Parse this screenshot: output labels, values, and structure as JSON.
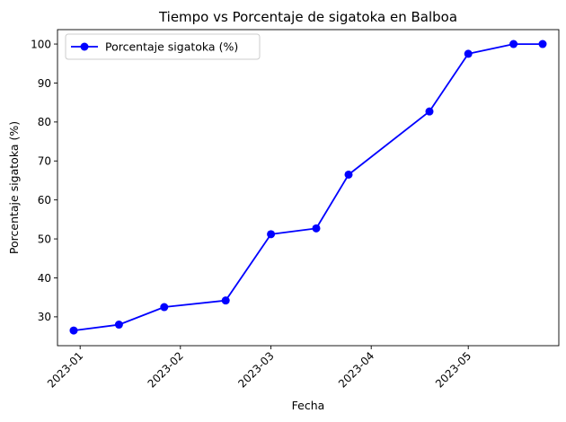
{
  "chart_data": {
    "type": "line",
    "title": "Tiempo vs Porcentaje de sigatoka en Balboa",
    "xlabel": "Fecha",
    "ylabel": "Porcentaje sigatoka (%)",
    "x_type": "date",
    "xlim": [
      "2022-12-25",
      "2023-05-29"
    ],
    "ylim": [
      22.6,
      103.7
    ],
    "x_ticks": [
      {
        "date": "2023-01-01",
        "label": "2023-01"
      },
      {
        "date": "2023-02-01",
        "label": "2023-02"
      },
      {
        "date": "2023-03-01",
        "label": "2023-03"
      },
      {
        "date": "2023-04-01",
        "label": "2023-04"
      },
      {
        "date": "2023-05-01",
        "label": "2023-05"
      }
    ],
    "y_ticks": [
      30,
      40,
      50,
      60,
      70,
      80,
      90,
      100
    ],
    "grid": false,
    "legend_position": "top-left",
    "series": [
      {
        "name": "Porcentaje sigatoka (%)",
        "color": "#0000ff",
        "marker": "circle",
        "x": [
          "2022-12-30",
          "2023-01-13",
          "2023-01-27",
          "2023-02-15",
          "2023-03-01",
          "2023-03-15",
          "2023-03-25",
          "2023-04-19",
          "2023-05-01",
          "2023-05-15",
          "2023-05-24"
        ],
        "y": [
          26.5,
          28.0,
          32.5,
          34.2,
          51.2,
          52.7,
          66.5,
          82.7,
          97.5,
          100.0,
          100.0
        ]
      }
    ]
  }
}
